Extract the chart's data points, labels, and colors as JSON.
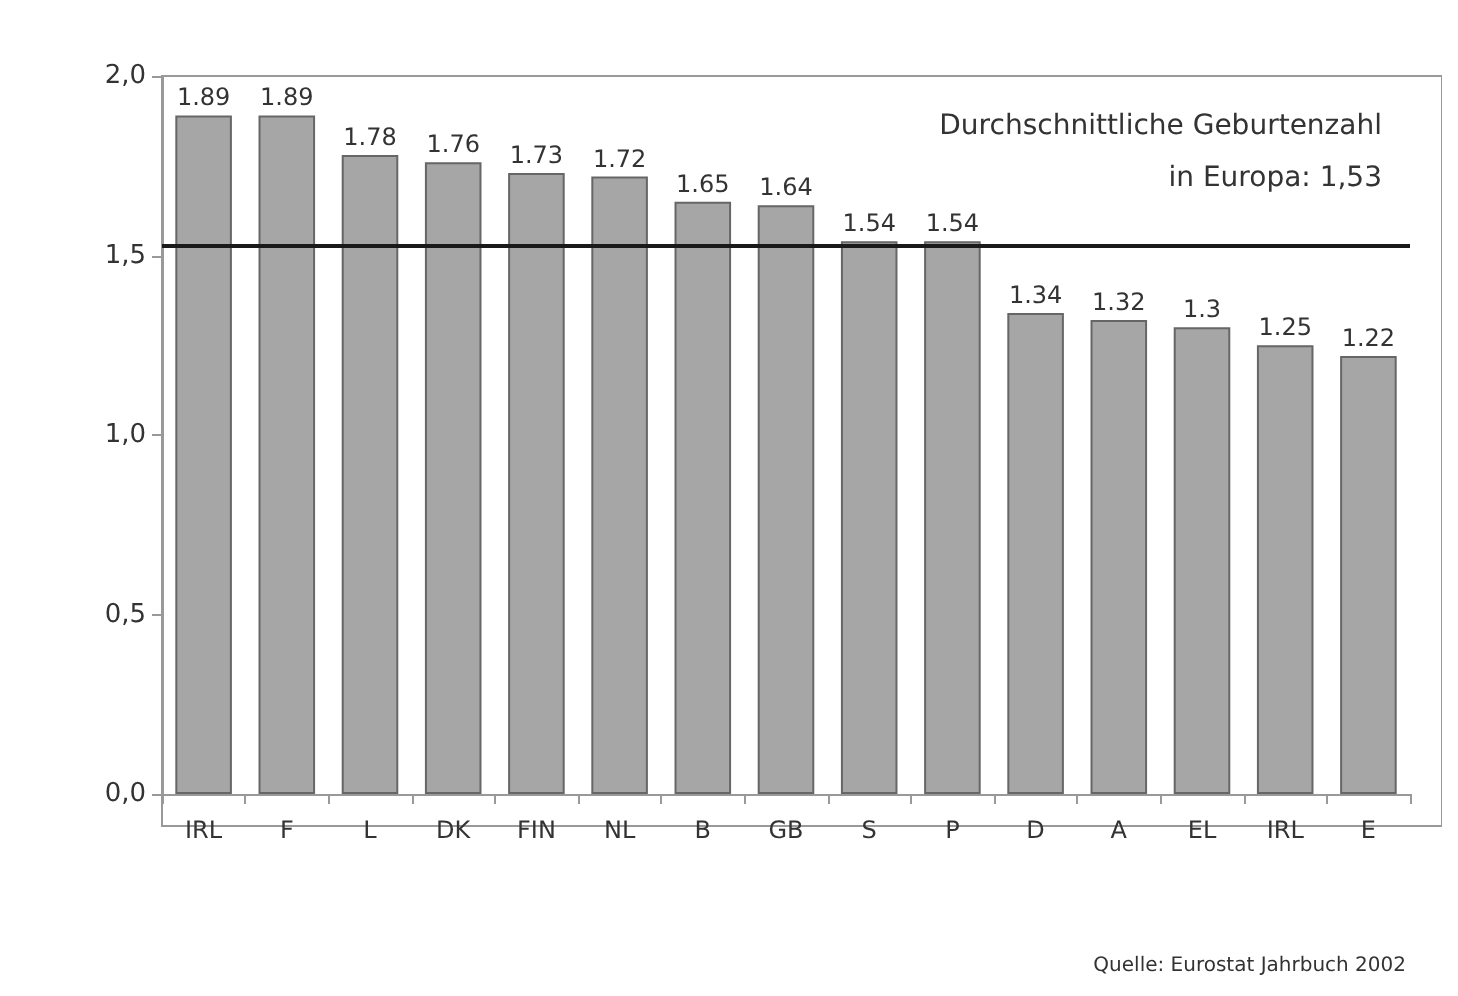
{
  "chart_data": {
    "type": "bar",
    "categories": [
      "IRL",
      "F",
      "L",
      "DK",
      "FIN",
      "NL",
      "B",
      "GB",
      "S",
      "P",
      "D",
      "A",
      "EL",
      "IRL",
      "E"
    ],
    "values": [
      1.89,
      1.89,
      1.78,
      1.76,
      1.73,
      1.72,
      1.65,
      1.64,
      1.54,
      1.54,
      1.34,
      1.32,
      1.3,
      1.25,
      1.22
    ],
    "color": "#a6a6a6",
    "ylim": [
      0,
      2
    ],
    "yticks": [
      {
        "value": 0,
        "label": "0,0"
      },
      {
        "value": 0.5,
        "label": "0,5"
      },
      {
        "value": 1,
        "label": "1,0"
      },
      {
        "value": 1.5,
        "label": "1,5"
      },
      {
        "value": 2,
        "label": "2,0"
      }
    ],
    "grid": false,
    "data_labels": true,
    "ref_lines": [
      {
        "axis": "y",
        "value": 1.53,
        "color": "#1a1a1a"
      }
    ],
    "annotations": [
      "Durchschnittliche Geburtenzahl\nin Europa: 1,53",
      "Quelle: Eurostat Jahrbuch 2002"
    ]
  }
}
